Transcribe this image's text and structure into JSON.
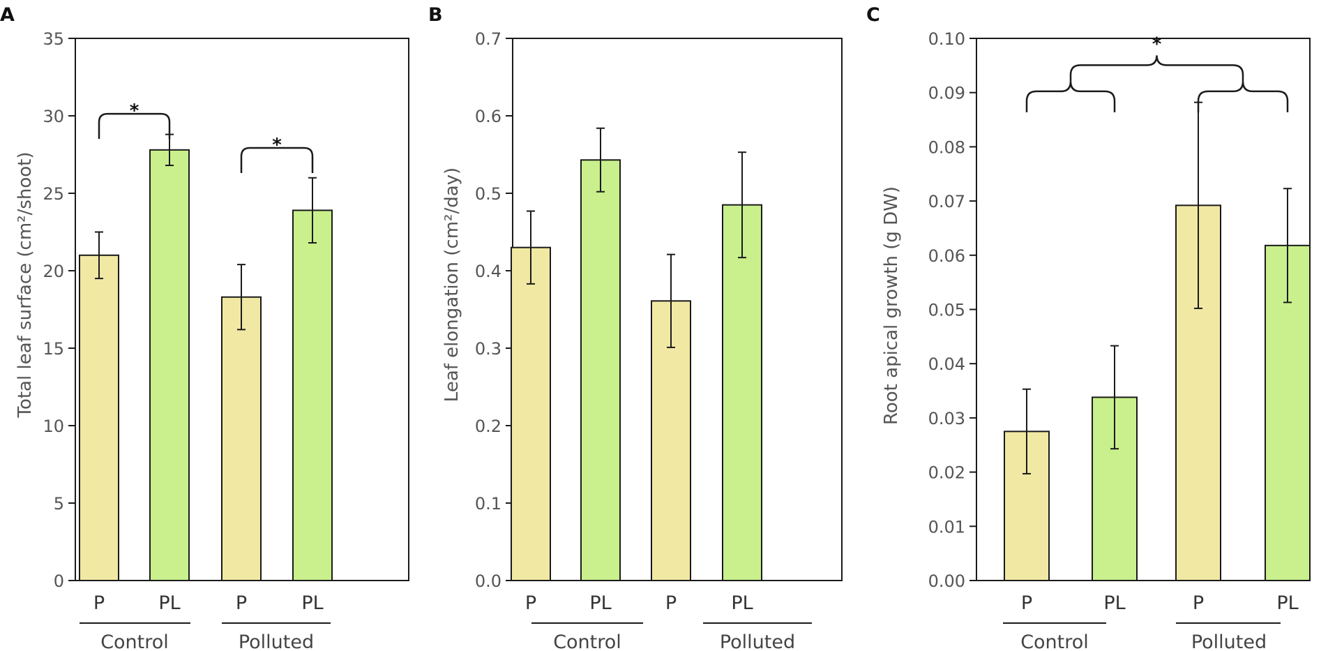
{
  "colors": {
    "P": "#f1e8a4",
    "PL": "#c9f08c",
    "axis": "#1a1a1a",
    "tick_text": "#555555"
  },
  "chart_data": [
    {
      "panel": "A",
      "type": "bar",
      "ylabel": "Total leaf surface (cm²/shoot)",
      "ylim": [
        0,
        35
      ],
      "ticks": [
        "0",
        "5",
        "10",
        "15",
        "20",
        "25",
        "30",
        "35"
      ],
      "tick_values": [
        0,
        5,
        10,
        15,
        20,
        25,
        30,
        35
      ],
      "categories": [
        "P",
        "PL",
        "P",
        "PL"
      ],
      "groups": [
        "Control",
        "Polluted"
      ],
      "values": [
        21.0,
        27.8,
        18.3,
        23.9
      ],
      "errors": [
        1.5,
        1.0,
        2.1,
        2.1
      ],
      "series": [
        "P",
        "PL",
        "P",
        "PL"
      ],
      "significance": [
        {
          "type": "pair",
          "from": 0,
          "to": 1,
          "level": 29.5,
          "label": "*"
        },
        {
          "type": "pair",
          "from": 2,
          "to": 3,
          "level": 27.3,
          "label": "*"
        }
      ]
    },
    {
      "panel": "B",
      "type": "bar",
      "ylabel": "Leaf elongation (cm²/day)",
      "ylim": [
        0,
        0.7
      ],
      "ticks": [
        "0.0",
        "0.1",
        "0.2",
        "0.3",
        "0.4",
        "0.5",
        "0.6",
        "0.7"
      ],
      "tick_values": [
        0,
        0.1,
        0.2,
        0.3,
        0.4,
        0.5,
        0.6,
        0.7
      ],
      "categories": [
        "P",
        "PL",
        "P",
        "PL"
      ],
      "groups": [
        "Control",
        "Polluted"
      ],
      "values": [
        0.43,
        0.543,
        0.361,
        0.485
      ],
      "errors": [
        0.047,
        0.041,
        0.06,
        0.068
      ],
      "series": [
        "P",
        "PL",
        "P",
        "PL"
      ],
      "significance": []
    },
    {
      "panel": "C",
      "type": "bar",
      "ylabel": "Root apical growth (g DW)",
      "ylim": [
        0,
        0.1
      ],
      "ticks": [
        "0.00",
        "0.01",
        "0.02",
        "0.03",
        "0.04",
        "0.05",
        "0.06",
        "0.07",
        "0.08",
        "0.09",
        "0.10"
      ],
      "tick_values": [
        0,
        0.01,
        0.02,
        0.03,
        0.04,
        0.05,
        0.06,
        0.07,
        0.08,
        0.09,
        0.1
      ],
      "categories": [
        "P",
        "PL",
        "P",
        "PL"
      ],
      "groups": [
        "Control",
        "Polluted"
      ],
      "values": [
        0.0275,
        0.0338,
        0.0692,
        0.0618
      ],
      "errors": [
        0.0078,
        0.0095,
        0.019,
        0.0105
      ],
      "series": [
        "P",
        "PL",
        "P",
        "PL"
      ],
      "significance": [
        {
          "type": "group",
          "left_from": 0,
          "left_to": 1,
          "right_from": 2,
          "right_to": 3,
          "level": 0.0892,
          "top": 0.0948,
          "label": "*"
        }
      ]
    }
  ]
}
